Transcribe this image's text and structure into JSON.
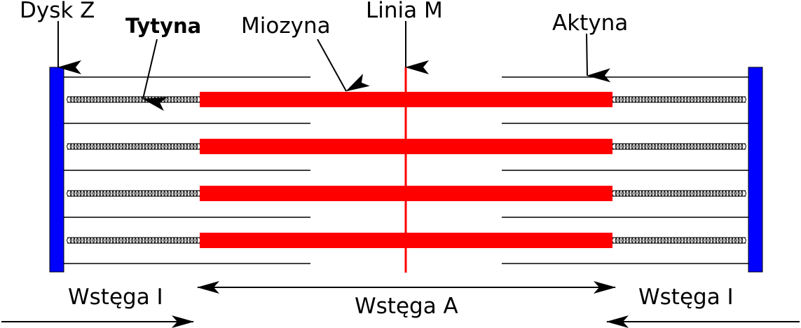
{
  "labels": {
    "z_disc": "Dysk Z",
    "titin": "Tytyna",
    "myosin": "Miozyna",
    "m_line": "Linia M",
    "actin": "Aktyna",
    "i_band_left": "Wstęga I",
    "a_band": "Wstęga A",
    "i_band_right": "Wstęga I"
  },
  "colors": {
    "z_disc": "#0000ff",
    "myosin": "#ff0000",
    "m_line": "#ff0000",
    "lines": "#000000"
  }
}
